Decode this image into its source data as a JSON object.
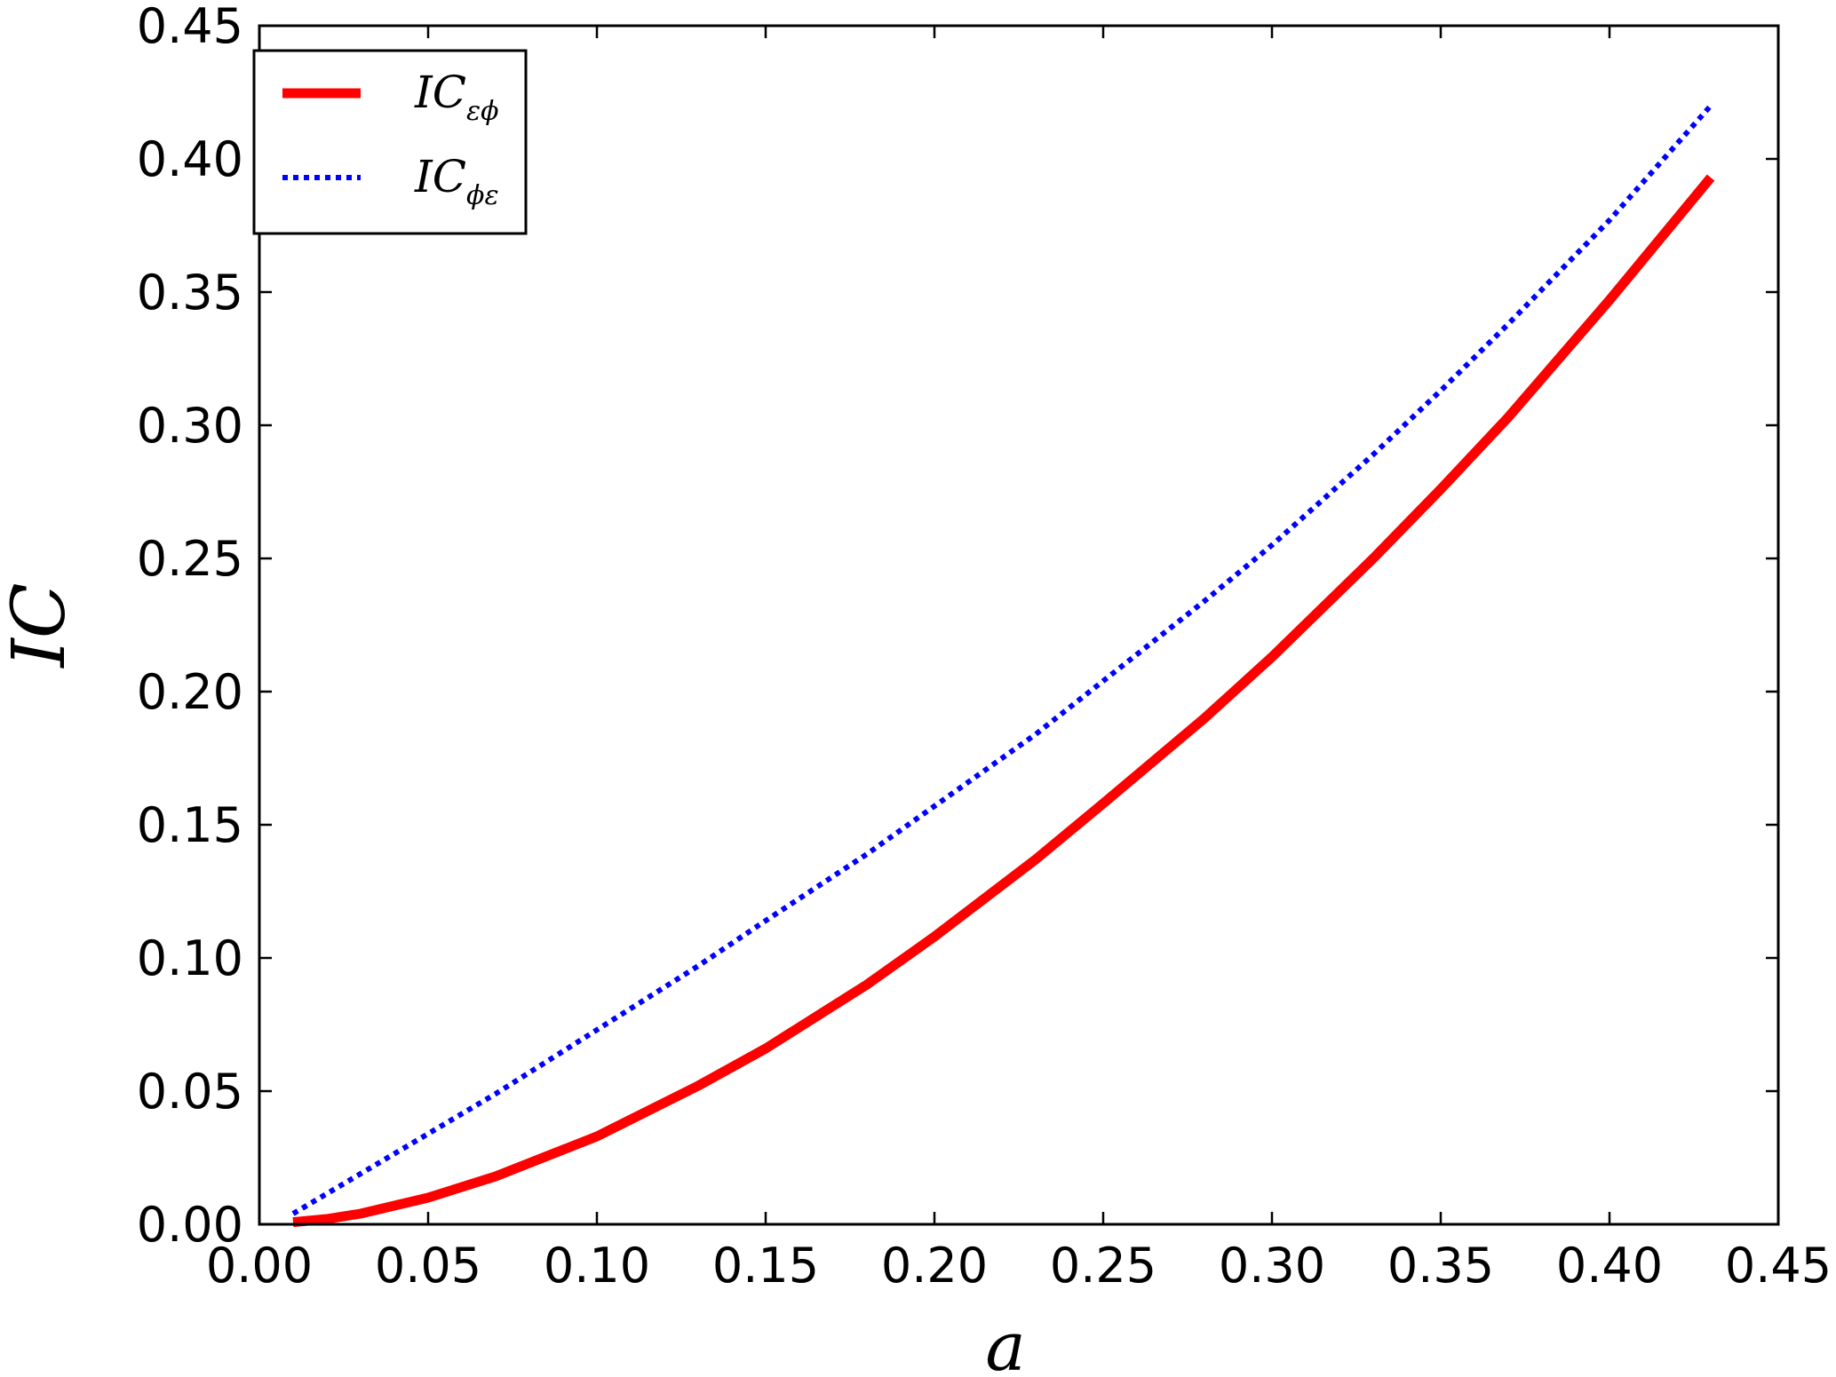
{
  "chart_data": {
    "type": "line",
    "xlabel": "a",
    "ylabel": "IC",
    "xlim": [
      0.0,
      0.45
    ],
    "ylim": [
      0.0,
      0.45
    ],
    "xticks": [
      "0.00",
      "0.05",
      "0.10",
      "0.15",
      "0.20",
      "0.25",
      "0.30",
      "0.35",
      "0.40",
      "0.45"
    ],
    "yticks": [
      "0.00",
      "0.05",
      "0.10",
      "0.15",
      "0.20",
      "0.25",
      "0.30",
      "0.35",
      "0.40",
      "0.45"
    ],
    "grid": false,
    "legend_position": "top-left",
    "series": [
      {
        "name": "IC",
        "subscript": "εϕ",
        "color": "#ff0000",
        "style": "solid",
        "x": [
          0.01,
          0.02,
          0.03,
          0.05,
          0.07,
          0.1,
          0.13,
          0.15,
          0.18,
          0.2,
          0.23,
          0.25,
          0.28,
          0.3,
          0.33,
          0.35,
          0.37,
          0.4,
          0.43
        ],
        "y": [
          0.0008,
          0.002,
          0.004,
          0.01,
          0.018,
          0.033,
          0.052,
          0.066,
          0.09,
          0.108,
          0.137,
          0.158,
          0.19,
          0.213,
          0.25,
          0.276,
          0.303,
          0.347,
          0.393
        ]
      },
      {
        "name": "IC",
        "subscript": "ϕε",
        "color": "#0000ff",
        "style": "dotted",
        "x": [
          0.01,
          0.03,
          0.05,
          0.07,
          0.1,
          0.13,
          0.15,
          0.18,
          0.2,
          0.23,
          0.25,
          0.28,
          0.3,
          0.33,
          0.35,
          0.37,
          0.4,
          0.43
        ],
        "y": [
          0.004,
          0.019,
          0.034,
          0.049,
          0.073,
          0.097,
          0.114,
          0.139,
          0.157,
          0.184,
          0.204,
          0.234,
          0.255,
          0.289,
          0.313,
          0.338,
          0.377,
          0.42
        ]
      }
    ]
  }
}
